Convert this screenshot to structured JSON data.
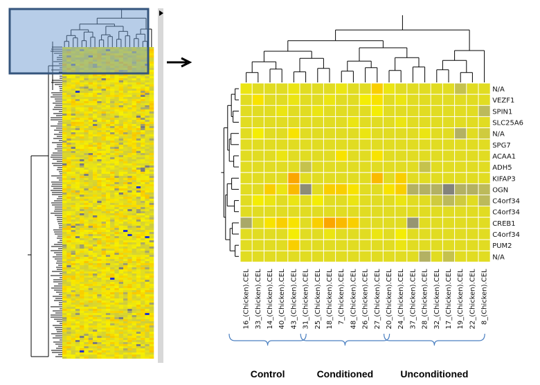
{
  "chart_data": {
    "type": "heatmap",
    "title": "",
    "rows": [
      "N/A",
      "VEZF1",
      "SPIN1",
      "SLC25A6",
      "N/A",
      "SPG7",
      "ACAA1",
      "ADH5",
      "KIFAP3",
      "OGN",
      "C4orf34",
      "C4orf34",
      "CREB1",
      "C4orf34",
      "PUM2",
      "N/A"
    ],
    "columns": [
      "16_(Chicken).CEL",
      "33_(Chicken).CEL",
      "14_(Chicken).CEL",
      "40_(Chicken).CEL",
      "43_(Chicken).CEL",
      "31_(Chicken).CEL",
      "25_(Chicken).CEL",
      "18_(Chicken).CEL",
      "7_(Chicken).CEL",
      "48_(Chicken).CEL",
      "26_(Chicken).CEL",
      "27_(Chicken).CEL",
      "20_(Chicken).CEL",
      "24_(Chicken).CEL",
      "37_(Chicken).CEL",
      "28_(Chicken).CEL",
      "32_(Chicken).CEL",
      "17_(Chicken).CEL",
      "19_(Chicken).CEL",
      "22_(Chicken).CEL",
      "8_(Chicken).CEL"
    ],
    "groups": [
      {
        "name": "Control",
        "count": 6
      },
      {
        "name": "Conditioned",
        "count": 7
      },
      {
        "name": "Unconditioned",
        "count": 8
      }
    ],
    "color_scale": [
      "#7a7a80",
      "#b9b760",
      "#f7f000",
      "#ff6a00"
    ],
    "values": [
      [
        0.6,
        0.55,
        0.55,
        0.55,
        0.6,
        0.55,
        0.55,
        0.55,
        0.6,
        0.55,
        0.55,
        0.75,
        0.6,
        0.55,
        0.55,
        0.55,
        0.55,
        0.55,
        0.4,
        0.55,
        0.55
      ],
      [
        0.55,
        0.7,
        0.55,
        0.55,
        0.6,
        0.55,
        0.55,
        0.6,
        0.55,
        0.55,
        0.65,
        0.7,
        0.55,
        0.6,
        0.55,
        0.55,
        0.55,
        0.55,
        0.55,
        0.55,
        0.55
      ],
      [
        0.55,
        0.55,
        0.55,
        0.6,
        0.55,
        0.55,
        0.6,
        0.55,
        0.55,
        0.55,
        0.55,
        0.65,
        0.55,
        0.55,
        0.55,
        0.55,
        0.55,
        0.55,
        0.55,
        0.55,
        0.35
      ],
      [
        0.55,
        0.55,
        0.55,
        0.55,
        0.55,
        0.55,
        0.55,
        0.55,
        0.55,
        0.6,
        0.55,
        0.55,
        0.55,
        0.6,
        0.55,
        0.55,
        0.55,
        0.55,
        0.55,
        0.55,
        0.55
      ],
      [
        0.55,
        0.65,
        0.55,
        0.55,
        0.7,
        0.55,
        0.55,
        0.55,
        0.55,
        0.55,
        0.6,
        0.55,
        0.55,
        0.55,
        0.55,
        0.6,
        0.55,
        0.55,
        0.3,
        0.55,
        0.45
      ],
      [
        0.55,
        0.55,
        0.55,
        0.55,
        0.55,
        0.55,
        0.55,
        0.55,
        0.55,
        0.55,
        0.55,
        0.55,
        0.55,
        0.55,
        0.55,
        0.55,
        0.55,
        0.55,
        0.55,
        0.55,
        0.55
      ],
      [
        0.55,
        0.55,
        0.55,
        0.6,
        0.55,
        0.55,
        0.55,
        0.55,
        0.7,
        0.55,
        0.55,
        0.7,
        0.55,
        0.55,
        0.55,
        0.55,
        0.55,
        0.55,
        0.55,
        0.55,
        0.55
      ],
      [
        0.55,
        0.55,
        0.55,
        0.55,
        0.55,
        0.4,
        0.55,
        0.55,
        0.55,
        0.55,
        0.55,
        0.55,
        0.55,
        0.55,
        0.55,
        0.4,
        0.55,
        0.55,
        0.55,
        0.55,
        0.55
      ],
      [
        0.55,
        0.55,
        0.55,
        0.55,
        0.85,
        0.55,
        0.55,
        0.55,
        0.55,
        0.55,
        0.55,
        0.8,
        0.55,
        0.75,
        0.55,
        0.55,
        0.55,
        0.55,
        0.55,
        0.55,
        0.55
      ],
      [
        0.55,
        0.55,
        0.75,
        0.6,
        0.8,
        0.1,
        0.55,
        0.75,
        0.75,
        0.7,
        0.55,
        0.55,
        0.7,
        0.75,
        0.3,
        0.3,
        0.3,
        0.05,
        0.3,
        0.3,
        0.35
      ],
      [
        0.55,
        0.65,
        0.6,
        0.55,
        0.6,
        0.55,
        0.65,
        0.55,
        0.55,
        0.6,
        0.55,
        0.55,
        0.55,
        0.6,
        0.55,
        0.55,
        0.45,
        0.35,
        0.45,
        0.55,
        0.35
      ],
      [
        0.55,
        0.55,
        0.55,
        0.55,
        0.55,
        0.55,
        0.55,
        0.55,
        0.55,
        0.55,
        0.55,
        0.55,
        0.55,
        0.55,
        0.55,
        0.55,
        0.55,
        0.55,
        0.55,
        0.55,
        0.55
      ],
      [
        0.25,
        0.55,
        0.7,
        0.75,
        0.7,
        0.55,
        0.75,
        0.85,
        0.8,
        0.75,
        0.55,
        0.55,
        0.55,
        0.55,
        0.15,
        0.55,
        0.55,
        0.55,
        0.55,
        0.55,
        0.55
      ],
      [
        0.55,
        0.55,
        0.55,
        0.55,
        0.65,
        0.55,
        0.55,
        0.6,
        0.55,
        0.55,
        0.55,
        0.6,
        0.55,
        0.65,
        0.55,
        0.55,
        0.55,
        0.55,
        0.55,
        0.55,
        0.55
      ],
      [
        0.55,
        0.55,
        0.55,
        0.55,
        0.75,
        0.55,
        0.55,
        0.55,
        0.55,
        0.55,
        0.55,
        0.55,
        0.55,
        0.6,
        0.55,
        0.55,
        0.55,
        0.55,
        0.55,
        0.55,
        0.55
      ],
      [
        0.55,
        0.55,
        0.55,
        0.55,
        0.55,
        0.55,
        0.55,
        0.55,
        0.55,
        0.55,
        0.55,
        0.55,
        0.55,
        0.55,
        0.55,
        0.3,
        0.55,
        0.4,
        0.55,
        0.55,
        0.55
      ]
    ]
  }
}
